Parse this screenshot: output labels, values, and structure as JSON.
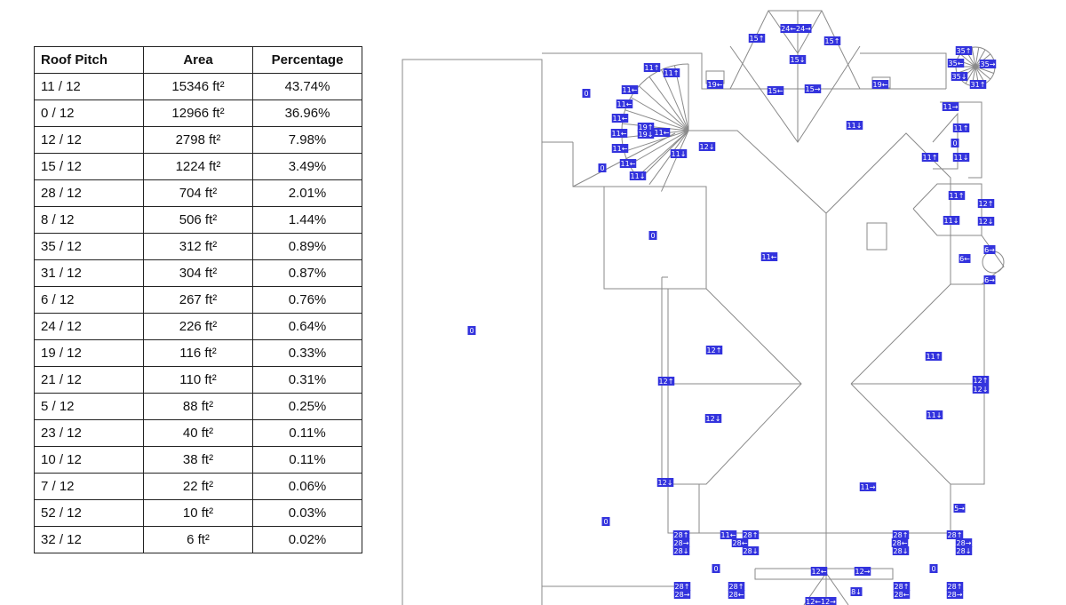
{
  "table": {
    "headers": [
      "Roof Pitch",
      "Area",
      "Percentage"
    ],
    "unit_suffix": "ft²",
    "rows": [
      {
        "pitch": "11 / 12",
        "area": "15346 ft²",
        "pct": "43.74%"
      },
      {
        "pitch": "0 / 12",
        "area": "12966 ft²",
        "pct": "36.96%"
      },
      {
        "pitch": "12 / 12",
        "area": "2798 ft²",
        "pct": "7.98%"
      },
      {
        "pitch": "15 / 12",
        "area": "1224 ft²",
        "pct": "3.49%"
      },
      {
        "pitch": "28 / 12",
        "area": "704 ft²",
        "pct": "2.01%"
      },
      {
        "pitch": "8 / 12",
        "area": "506 ft²",
        "pct": "1.44%"
      },
      {
        "pitch": "35 / 12",
        "area": "312 ft²",
        "pct": "0.89%"
      },
      {
        "pitch": "31 / 12",
        "area": "304 ft²",
        "pct": "0.87%"
      },
      {
        "pitch": "6 / 12",
        "area": "267 ft²",
        "pct": "0.76%"
      },
      {
        "pitch": "24 / 12",
        "area": "226 ft²",
        "pct": "0.64%"
      },
      {
        "pitch": "19 / 12",
        "area": "116 ft²",
        "pct": "0.33%"
      },
      {
        "pitch": "21 / 12",
        "area": "110 ft²",
        "pct": "0.31%"
      },
      {
        "pitch": "5 / 12",
        "area": "88 ft²",
        "pct": "0.25%"
      },
      {
        "pitch": "23 / 12",
        "area": "40 ft²",
        "pct": "0.11%"
      },
      {
        "pitch": "10 / 12",
        "area": "38 ft²",
        "pct": "0.11%"
      },
      {
        "pitch": "7 / 12",
        "area": "22 ft²",
        "pct": "0.06%"
      },
      {
        "pitch": "52 / 12",
        "area": "10 ft²",
        "pct": "0.03%"
      },
      {
        "pitch": "32 / 12",
        "area": "6 ft²",
        "pct": "0.02%"
      }
    ]
  },
  "plan": {
    "line_color": "#8a8a8a",
    "label_color": "#3333dd",
    "labels": [
      {
        "text": "0"
      },
      {
        "text": "0"
      },
      {
        "text": "0"
      },
      {
        "text": "0"
      },
      {
        "text": "0"
      },
      {
        "text": "0"
      },
      {
        "text": "0"
      },
      {
        "text": "0"
      },
      {
        "text": "11↑"
      },
      {
        "text": "11↑"
      },
      {
        "text": "11←"
      },
      {
        "text": "11←"
      },
      {
        "text": "11←"
      },
      {
        "text": "11←"
      },
      {
        "text": "11←"
      },
      {
        "text": "19↑"
      },
      {
        "text": "19↓"
      },
      {
        "text": "11←"
      },
      {
        "text": "11←"
      },
      {
        "text": "11↓"
      },
      {
        "text": "11↓"
      },
      {
        "text": "12↓"
      },
      {
        "text": "19←"
      },
      {
        "text": "19←"
      },
      {
        "text": "15↑"
      },
      {
        "text": "15↑"
      },
      {
        "text": "24←24→"
      },
      {
        "text": "15↓"
      },
      {
        "text": "15←"
      },
      {
        "text": "15→"
      },
      {
        "text": "11↓"
      },
      {
        "text": "11→"
      },
      {
        "text": "11↑"
      },
      {
        "text": "11↑"
      },
      {
        "text": "11↓"
      },
      {
        "text": "11↑"
      },
      {
        "text": "11↓"
      },
      {
        "text": "12↑"
      },
      {
        "text": "12↓"
      },
      {
        "text": "6→"
      },
      {
        "text": "6←"
      },
      {
        "text": "6→"
      },
      {
        "text": "11←"
      },
      {
        "text": "12↑"
      },
      {
        "text": "12↑"
      },
      {
        "text": "12↓"
      },
      {
        "text": "11↑"
      },
      {
        "text": "12↑"
      },
      {
        "text": "12↓"
      },
      {
        "text": "11↓"
      },
      {
        "text": "12↓"
      },
      {
        "text": "11→"
      },
      {
        "text": "5→"
      },
      {
        "text": "12←"
      },
      {
        "text": "12→"
      },
      {
        "text": "8↓"
      },
      {
        "text": "12←12→"
      },
      {
        "text": "28↑"
      },
      {
        "text": "28→"
      },
      {
        "text": "28↓"
      },
      {
        "text": "11←"
      },
      {
        "text": "28↑"
      },
      {
        "text": "28←"
      },
      {
        "text": "28↓"
      },
      {
        "text": "28↑"
      },
      {
        "text": "28←"
      },
      {
        "text": "28↓"
      },
      {
        "text": "28↑"
      },
      {
        "text": "28→"
      },
      {
        "text": "28↓"
      },
      {
        "text": "28↑"
      },
      {
        "text": "28→"
      },
      {
        "text": "28↑"
      },
      {
        "text": "28←"
      },
      {
        "text": "28↑"
      },
      {
        "text": "28←"
      },
      {
        "text": "28↑"
      },
      {
        "text": "28→"
      },
      {
        "text": "35↑"
      },
      {
        "text": "35←"
      },
      {
        "text": "35→"
      },
      {
        "text": "35↓"
      },
      {
        "text": "31↑"
      }
    ]
  }
}
